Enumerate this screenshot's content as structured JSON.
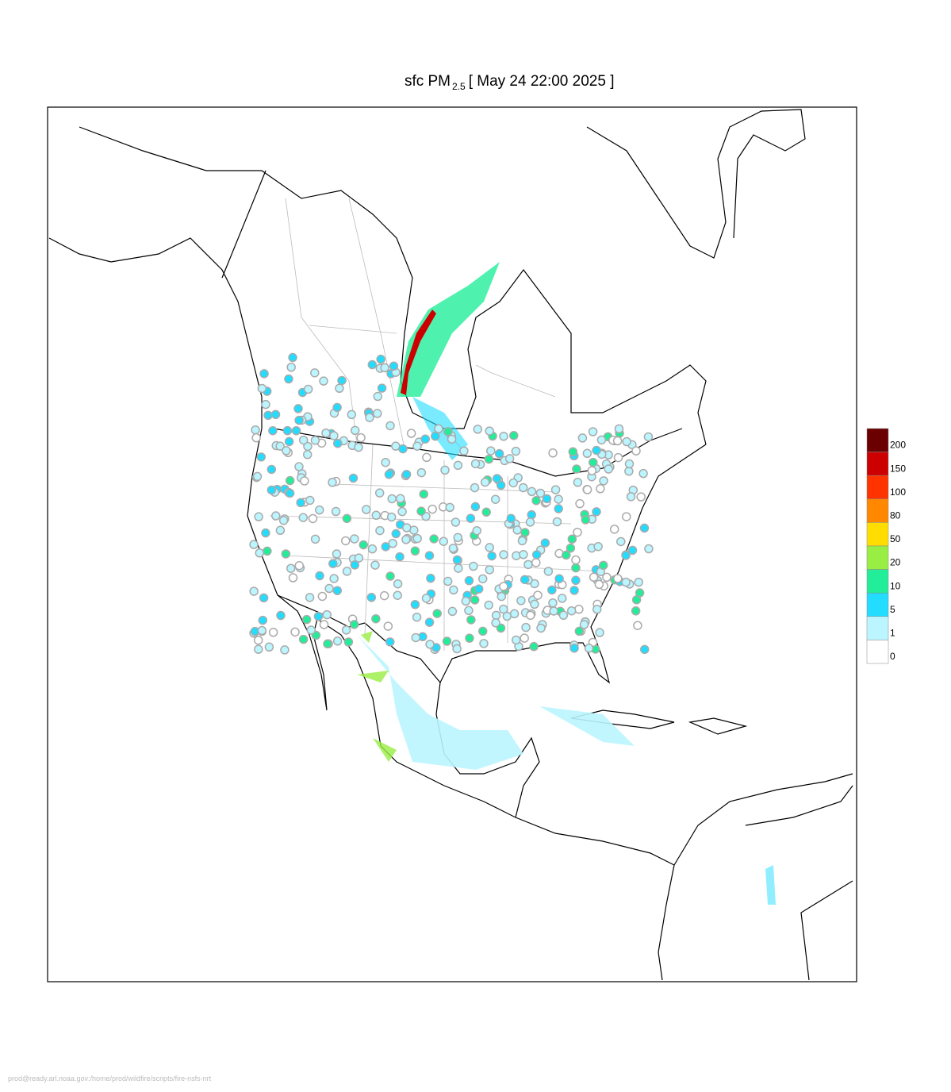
{
  "title": {
    "main": "sfc PM",
    "subscript": "2.5",
    "time": "[ May 24 22:00 2025 ]"
  },
  "colorbar": {
    "ticks": [
      200,
      150,
      100,
      80,
      50,
      20,
      10,
      5,
      1,
      0
    ],
    "colors": [
      "#6b0000",
      "#cc0000",
      "#ff3300",
      "#ff8800",
      "#ffdd00",
      "#99ee44",
      "#22ee99",
      "#22ddff",
      "#bbf5ff",
      "#ffffff"
    ]
  },
  "footer": "prod@ready.arl.noaa.gov:/home/prod/wildfire/scripts/fire-nsfs-nrt"
}
